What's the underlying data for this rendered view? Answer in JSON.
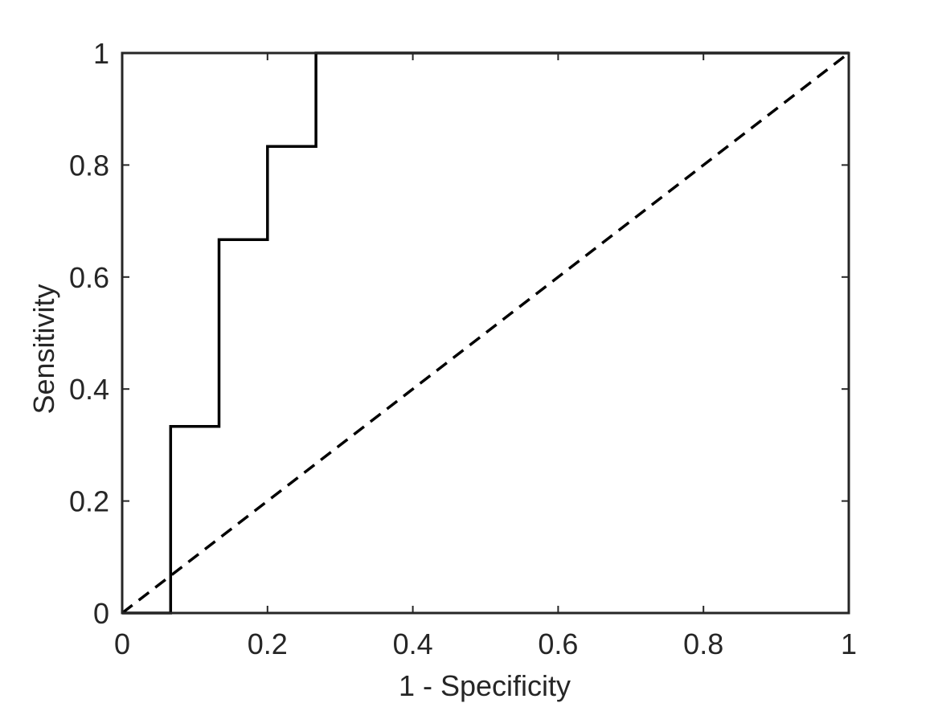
{
  "chart_data": {
    "type": "line",
    "title": "",
    "xlabel": "1 - Specificity",
    "ylabel": "Sensitivity",
    "xlim": [
      0,
      1
    ],
    "ylim": [
      0,
      1
    ],
    "grid": false,
    "x_ticks": [
      0,
      0.2,
      0.4,
      0.6,
      0.8,
      1
    ],
    "y_ticks": [
      0,
      0.2,
      0.4,
      0.6,
      0.8,
      1
    ],
    "x_tick_labels": [
      "0",
      "0.2",
      "0.4",
      "0.6",
      "0.8",
      "1"
    ],
    "y_tick_labels": [
      "0",
      "0.2",
      "0.4",
      "0.6",
      "0.8",
      "1"
    ],
    "series": [
      {
        "style": "solid",
        "color": "#000000",
        "points": [
          [
            0,
            0
          ],
          [
            0.0667,
            0
          ],
          [
            0.0667,
            0.3333
          ],
          [
            0.1333,
            0.3333
          ],
          [
            0.1333,
            0.6667
          ],
          [
            0.2,
            0.6667
          ],
          [
            0.2,
            0.8333
          ],
          [
            0.2667,
            0.8333
          ],
          [
            0.2667,
            1
          ],
          [
            1,
            1
          ]
        ]
      },
      {
        "style": "dashed",
        "color": "#000000",
        "points": [
          [
            0,
            0
          ],
          [
            1,
            1
          ]
        ]
      }
    ]
  }
}
